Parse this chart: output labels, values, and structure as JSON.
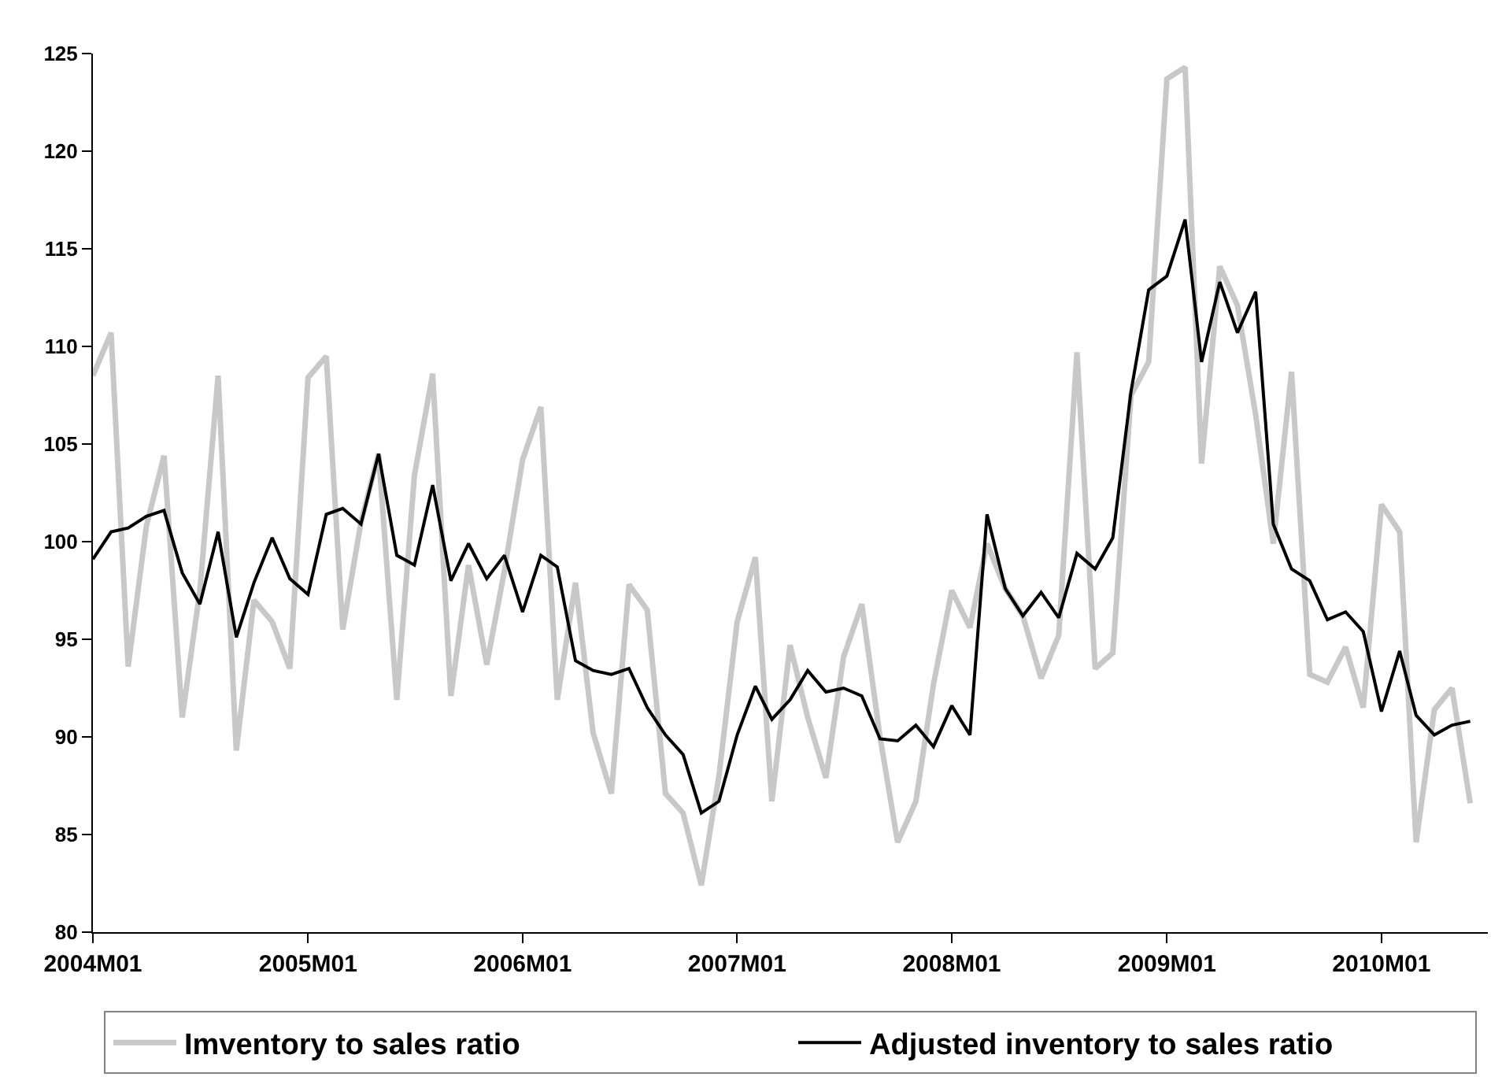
{
  "chart_data": {
    "type": "line",
    "x": [
      "2004-01",
      "2004-02",
      "2004-03",
      "2004-04",
      "2004-05",
      "2004-06",
      "2004-07",
      "2004-08",
      "2004-09",
      "2004-10",
      "2004-11",
      "2004-12",
      "2005-01",
      "2005-02",
      "2005-03",
      "2005-04",
      "2005-05",
      "2005-06",
      "2005-07",
      "2005-08",
      "2005-09",
      "2005-10",
      "2005-11",
      "2005-12",
      "2006-01",
      "2006-02",
      "2006-03",
      "2006-04",
      "2006-05",
      "2006-06",
      "2006-07",
      "2006-08",
      "2006-09",
      "2006-10",
      "2006-11",
      "2006-12",
      "2007-01",
      "2007-02",
      "2007-03",
      "2007-04",
      "2007-05",
      "2007-06",
      "2007-07",
      "2007-08",
      "2007-09",
      "2007-10",
      "2007-11",
      "2007-12",
      "2008-01",
      "2008-02",
      "2008-03",
      "2008-04",
      "2008-05",
      "2008-06",
      "2008-07",
      "2008-08",
      "2008-09",
      "2008-10",
      "2008-11",
      "2008-12",
      "2009-01",
      "2009-02",
      "2009-03",
      "2009-04",
      "2009-05",
      "2009-06",
      "2009-07",
      "2009-08",
      "2009-09",
      "2009-10",
      "2009-11",
      "2009-12",
      "2010-01",
      "2010-02",
      "2010-03",
      "2010-04",
      "2010-05",
      "2010-06"
    ],
    "series": [
      {
        "name": "Imventory to sales ratio",
        "color": "#c8c8c8",
        "values": [
          108.5,
          110.7,
          93.6,
          100.8,
          104.4,
          91.0,
          97.5,
          108.5,
          89.3,
          97.0,
          95.9,
          93.5,
          108.4,
          109.5,
          95.5,
          101.0,
          104.5,
          91.9,
          103.4,
          108.6,
          92.1,
          98.8,
          93.7,
          98.5,
          104.2,
          106.9,
          91.9,
          97.9,
          90.2,
          87.1,
          97.8,
          96.5,
          87.1,
          86.1,
          82.4,
          88.0,
          95.9,
          99.2,
          86.7,
          94.7,
          91.0,
          87.9,
          94.1,
          96.8,
          90.0,
          84.6,
          86.7,
          92.7,
          97.5,
          95.6,
          99.9,
          97.6,
          96.2,
          93.0,
          95.2,
          109.7,
          93.5,
          94.3,
          107.5,
          109.2,
          123.7,
          124.3,
          104.0,
          114.1,
          112.1,
          106.5,
          99.9,
          108.7,
          93.2,
          92.8,
          94.6,
          91.5,
          101.9,
          100.5,
          84.6,
          91.4,
          92.5,
          86.6
        ]
      },
      {
        "name": "Adjusted inventory to sales ratio",
        "color": "#000000",
        "values": [
          99.1,
          100.5,
          100.7,
          101.3,
          101.6,
          98.4,
          96.8,
          100.5,
          95.1,
          97.9,
          100.2,
          98.1,
          97.3,
          101.4,
          101.7,
          100.9,
          104.5,
          99.3,
          98.8,
          102.9,
          98.0,
          99.9,
          98.1,
          99.3,
          96.4,
          99.3,
          98.7,
          93.9,
          93.4,
          93.2,
          93.5,
          91.5,
          90.1,
          89.1,
          86.1,
          86.7,
          90.1,
          92.6,
          90.9,
          91.9,
          93.4,
          92.3,
          92.5,
          92.1,
          89.9,
          89.8,
          90.6,
          89.5,
          91.6,
          90.1,
          101.4,
          97.6,
          96.2,
          97.4,
          96.1,
          99.4,
          98.6,
          100.2,
          107.7,
          112.9,
          113.6,
          116.5,
          109.2,
          113.3,
          110.7,
          112.8,
          100.9,
          98.6,
          98.0,
          96.0,
          96.4,
          95.4,
          91.3,
          94.4,
          91.1,
          90.1,
          90.6,
          90.8
        ]
      }
    ],
    "xlim": [
      "2004-01",
      "2010-07"
    ],
    "xticks": [
      {
        "value": "2004-01",
        "label": "2004M01"
      },
      {
        "value": "2005-01",
        "label": "2005M01"
      },
      {
        "value": "2006-01",
        "label": "2006M01"
      },
      {
        "value": "2007-01",
        "label": "2007M01"
      },
      {
        "value": "2008-01",
        "label": "2008M01"
      },
      {
        "value": "2009-01",
        "label": "2009M01"
      },
      {
        "value": "2010-01",
        "label": "2010M01"
      }
    ],
    "ylim": [
      80,
      125
    ],
    "yticks": [
      80,
      85,
      90,
      95,
      100,
      105,
      110,
      115,
      120,
      125
    ],
    "grid": false,
    "legend": "bottom",
    "marker": "none",
    "line_style": "solid"
  }
}
